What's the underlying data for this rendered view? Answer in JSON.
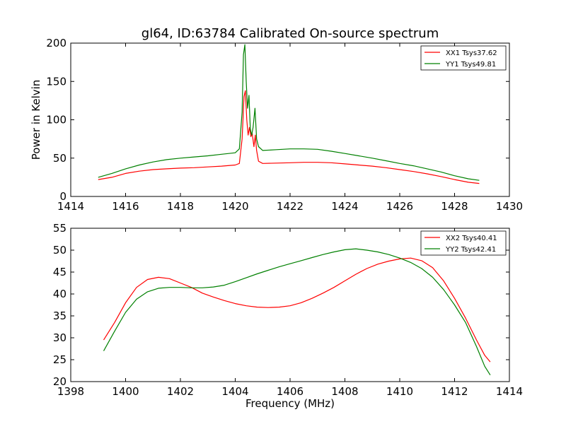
{
  "figure": {
    "title": "gl64, ID:63784 Calibrated On-source spectrum",
    "xlabel": "Frequency (MHz)"
  },
  "chart_data": [
    {
      "type": "line",
      "title": "gl64, ID:63784 Calibrated On-source spectrum",
      "xlabel": "",
      "ylabel": "Power in Kelvin",
      "xlim": [
        1414,
        1430
      ],
      "ylim": [
        0,
        200
      ],
      "xticks": [
        "1414",
        "1416",
        "1418",
        "1420",
        "1422",
        "1424",
        "1426",
        "1428",
        "1430"
      ],
      "yticks": [
        "0",
        "50",
        "100",
        "150",
        "200"
      ],
      "grid": false,
      "legend_position": "top-right",
      "series": [
        {
          "name": "XX1 Tsys37.62",
          "color": "#ff0000",
          "points": [
            [
              1415.0,
              22
            ],
            [
              1415.5,
              25
            ],
            [
              1416.0,
              30
            ],
            [
              1416.5,
              33
            ],
            [
              1417.0,
              35
            ],
            [
              1417.5,
              36
            ],
            [
              1418.0,
              37
            ],
            [
              1418.5,
              37.5
            ],
            [
              1419.0,
              38.5
            ],
            [
              1419.5,
              39.5
            ],
            [
              1420.0,
              41
            ],
            [
              1420.15,
              43
            ],
            [
              1420.25,
              75
            ],
            [
              1420.32,
              130
            ],
            [
              1420.37,
              138
            ],
            [
              1420.42,
              100
            ],
            [
              1420.47,
              80
            ],
            [
              1420.52,
              90
            ],
            [
              1420.57,
              78
            ],
            [
              1420.62,
              82
            ],
            [
              1420.68,
              65
            ],
            [
              1420.73,
              80
            ],
            [
              1420.78,
              60
            ],
            [
              1420.85,
              46
            ],
            [
              1421.0,
              43
            ],
            [
              1421.5,
              43.5
            ],
            [
              1422.0,
              44
            ],
            [
              1422.5,
              44.5
            ],
            [
              1423.0,
              44.5
            ],
            [
              1423.5,
              44
            ],
            [
              1424.0,
              42.5
            ],
            [
              1424.5,
              41
            ],
            [
              1425.0,
              39.5
            ],
            [
              1425.5,
              37.5
            ],
            [
              1426.0,
              35
            ],
            [
              1426.5,
              32.5
            ],
            [
              1427.0,
              29.5
            ],
            [
              1427.5,
              26
            ],
            [
              1428.0,
              22
            ],
            [
              1428.5,
              18.5
            ],
            [
              1428.9,
              17
            ]
          ]
        },
        {
          "name": "YY1 Tsys49.81",
          "color": "#008000",
          "points": [
            [
              1415.0,
              25
            ],
            [
              1415.5,
              30
            ],
            [
              1416.0,
              36
            ],
            [
              1416.5,
              41
            ],
            [
              1417.0,
              45
            ],
            [
              1417.5,
              48
            ],
            [
              1418.0,
              50
            ],
            [
              1418.5,
              51.5
            ],
            [
              1419.0,
              53
            ],
            [
              1419.5,
              55
            ],
            [
              1420.0,
              57
            ],
            [
              1420.15,
              62
            ],
            [
              1420.25,
              110
            ],
            [
              1420.3,
              185
            ],
            [
              1420.35,
              198
            ],
            [
              1420.4,
              150
            ],
            [
              1420.45,
              115
            ],
            [
              1420.5,
              132
            ],
            [
              1420.55,
              88
            ],
            [
              1420.6,
              80
            ],
            [
              1420.65,
              90
            ],
            [
              1420.72,
              115
            ],
            [
              1420.78,
              75
            ],
            [
              1420.85,
              65
            ],
            [
              1421.0,
              60
            ],
            [
              1421.5,
              61
            ],
            [
              1422.0,
              62
            ],
            [
              1422.5,
              62
            ],
            [
              1423.0,
              61.5
            ],
            [
              1423.5,
              59
            ],
            [
              1424.0,
              56
            ],
            [
              1424.5,
              53
            ],
            [
              1425.0,
              50
            ],
            [
              1425.5,
              46.5
            ],
            [
              1426.0,
              43
            ],
            [
              1426.5,
              40
            ],
            [
              1427.0,
              36
            ],
            [
              1427.5,
              32
            ],
            [
              1428.0,
              27
            ],
            [
              1428.5,
              23
            ],
            [
              1428.9,
              21
            ]
          ]
        }
      ]
    },
    {
      "type": "line",
      "title": "",
      "xlabel": "Frequency (MHz)",
      "ylabel": "",
      "xlim": [
        1398,
        1414
      ],
      "ylim": [
        20,
        55
      ],
      "xticks": [
        "1398",
        "1400",
        "1402",
        "1404",
        "1406",
        "1408",
        "1410",
        "1412",
        "1414"
      ],
      "yticks": [
        "20",
        "25",
        "30",
        "35",
        "40",
        "45",
        "50",
        "55"
      ],
      "grid": false,
      "legend_position": "top-right",
      "series": [
        {
          "name": "XX2 Tsys40.41",
          "color": "#ff0000",
          "points": [
            [
              1399.2,
              29.5
            ],
            [
              1399.6,
              33.5
            ],
            [
              1400.0,
              38
            ],
            [
              1400.4,
              41.5
            ],
            [
              1400.8,
              43.3
            ],
            [
              1401.2,
              43.8
            ],
            [
              1401.6,
              43.5
            ],
            [
              1402.0,
              42.5
            ],
            [
              1402.4,
              41.5
            ],
            [
              1402.8,
              40.2
            ],
            [
              1403.2,
              39.3
            ],
            [
              1403.6,
              38.5
            ],
            [
              1404.0,
              37.8
            ],
            [
              1404.4,
              37.3
            ],
            [
              1404.8,
              37.0
            ],
            [
              1405.2,
              36.9
            ],
            [
              1405.6,
              37.0
            ],
            [
              1406.0,
              37.3
            ],
            [
              1406.4,
              38.0
            ],
            [
              1406.8,
              39.0
            ],
            [
              1407.2,
              40.2
            ],
            [
              1407.6,
              41.5
            ],
            [
              1408.0,
              43.0
            ],
            [
              1408.4,
              44.5
            ],
            [
              1408.8,
              45.8
            ],
            [
              1409.2,
              46.8
            ],
            [
              1409.6,
              47.5
            ],
            [
              1410.0,
              48.0
            ],
            [
              1410.4,
              48.2
            ],
            [
              1410.8,
              47.6
            ],
            [
              1411.2,
              46.0
            ],
            [
              1411.6,
              43.0
            ],
            [
              1412.0,
              39.0
            ],
            [
              1412.4,
              34.5
            ],
            [
              1412.8,
              29.5
            ],
            [
              1413.1,
              26.0
            ],
            [
              1413.3,
              24.5
            ]
          ]
        },
        {
          "name": "YY2 Tsys42.41",
          "color": "#008000",
          "points": [
            [
              1399.2,
              27.0
            ],
            [
              1399.6,
              31.5
            ],
            [
              1400.0,
              35.8
            ],
            [
              1400.4,
              38.8
            ],
            [
              1400.8,
              40.5
            ],
            [
              1401.2,
              41.3
            ],
            [
              1401.6,
              41.5
            ],
            [
              1402.0,
              41.5
            ],
            [
              1402.4,
              41.4
            ],
            [
              1402.8,
              41.4
            ],
            [
              1403.2,
              41.6
            ],
            [
              1403.6,
              42.0
            ],
            [
              1404.0,
              42.8
            ],
            [
              1404.4,
              43.7
            ],
            [
              1404.8,
              44.6
            ],
            [
              1405.2,
              45.4
            ],
            [
              1405.6,
              46.2
            ],
            [
              1406.0,
              46.9
            ],
            [
              1406.4,
              47.6
            ],
            [
              1406.8,
              48.3
            ],
            [
              1407.2,
              49.0
            ],
            [
              1407.6,
              49.6
            ],
            [
              1408.0,
              50.1
            ],
            [
              1408.4,
              50.3
            ],
            [
              1408.8,
              50.0
            ],
            [
              1409.2,
              49.6
            ],
            [
              1409.6,
              49.0
            ],
            [
              1410.0,
              48.2
            ],
            [
              1410.4,
              47.2
            ],
            [
              1410.8,
              45.8
            ],
            [
              1411.2,
              43.8
            ],
            [
              1411.6,
              41.0
            ],
            [
              1412.0,
              37.5
            ],
            [
              1412.4,
              33.5
            ],
            [
              1412.8,
              28.0
            ],
            [
              1413.1,
              23.5
            ],
            [
              1413.3,
              21.5
            ]
          ]
        }
      ]
    }
  ]
}
